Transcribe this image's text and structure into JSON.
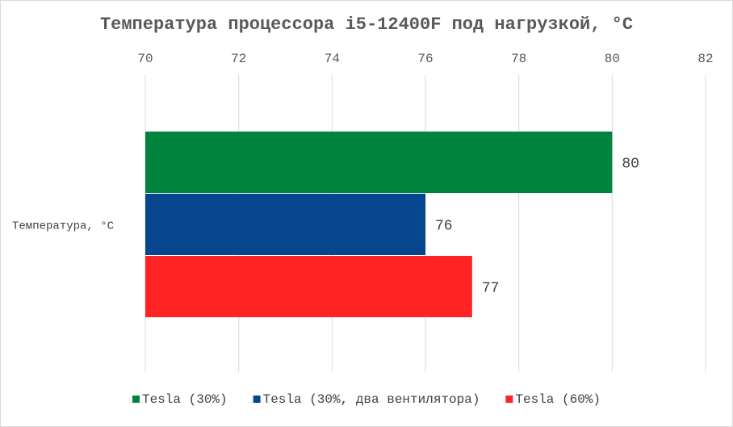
{
  "chart_data": {
    "type": "bar",
    "orientation": "horizontal",
    "title": "Температура процессора i5-12400F под нагрузкой, °C",
    "categories": [
      "Температура, °C"
    ],
    "series": [
      {
        "name": "Tesla (30%)",
        "values": [
          80
        ],
        "color": "#00843d"
      },
      {
        "name": "Tesla (30%, два вентилятора)",
        "values": [
          76
        ],
        "color": "#05468f"
      },
      {
        "name": "Tesla (60%)",
        "values": [
          77
        ],
        "color": "#ff2323"
      }
    ],
    "x_axis": {
      "range": [
        70,
        82
      ],
      "ticks": [
        70,
        72,
        74,
        76,
        78,
        80,
        82
      ],
      "position": "top",
      "grid": true
    },
    "data_labels": true,
    "legend": {
      "position": "bottom"
    }
  }
}
